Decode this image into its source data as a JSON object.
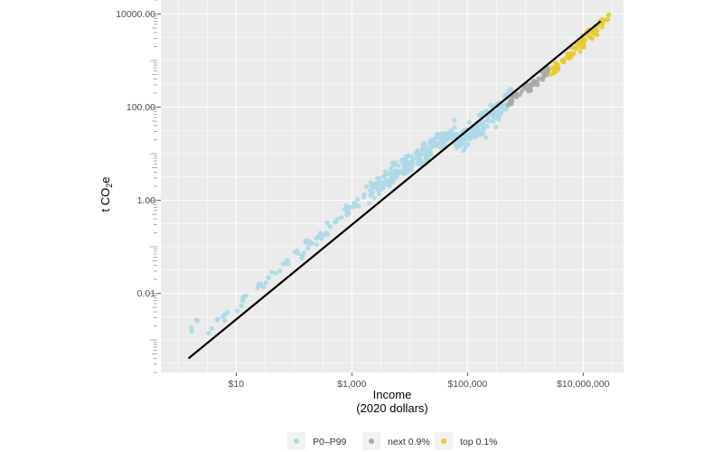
{
  "chart_data": {
    "type": "scatter",
    "xlabel_lines": [
      "Income",
      "(2020 dollars)"
    ],
    "ylabel": {
      "main": "t CO",
      "sub": "2",
      "tail": "e"
    },
    "x_scale": "log10",
    "y_scale": "log10",
    "xlim": [
      0.5,
      50000000
    ],
    "ylim": [
      0.0002,
      20000
    ],
    "x_ticks": [
      {
        "value": 10,
        "label": "$10"
      },
      {
        "value": 1000,
        "label": "$1,000"
      },
      {
        "value": 100000,
        "label": "$100,000"
      },
      {
        "value": 10000000,
        "label": "$10,000,000"
      }
    ],
    "y_ticks": [
      {
        "value": 0.01,
        "label": "0.01"
      },
      {
        "value": 1,
        "label": "1.00"
      },
      {
        "value": 100,
        "label": "100.00"
      },
      {
        "value": 10000,
        "label": "10000.00"
      }
    ],
    "grid": true,
    "legend_position": "bottom",
    "series": [
      {
        "name": "P0–P99",
        "color": "#ADD8E6",
        "clusters": [
          {
            "x": [
              0.8,
              3
            ],
            "y": [
              0.0005,
              0.005
            ],
            "n": 4,
            "slope": 1.0,
            "spread": 0.15
          },
          {
            "x": [
              3,
              100
            ],
            "y": [
              0.0015,
              0.06
            ],
            "n": 30,
            "slope": 1.0,
            "spread": 0.14
          },
          {
            "x": [
              100,
              2000
            ],
            "y": [
              0.06,
              1.5
            ],
            "n": 45,
            "slope": 1.0,
            "spread": 0.18
          },
          {
            "x": [
              2000,
              60000
            ],
            "y": [
              1.5,
              30
            ],
            "n": 180,
            "slope": 1.0,
            "spread": 0.22
          },
          {
            "x": [
              60000,
              600000
            ],
            "y": [
              15,
              150
            ],
            "n": 140,
            "slope": 1.0,
            "spread": 0.25
          }
        ]
      },
      {
        "name": "next 0.9%",
        "color": "#A9A9A9",
        "clusters": [
          {
            "x": [
              500000,
              2500000
            ],
            "y": [
              120,
              600
            ],
            "n": 45,
            "slope": 1.0,
            "spread": 0.12
          }
        ]
      },
      {
        "name": "top 0.1%",
        "color": "#E6CC33",
        "clusters": [
          {
            "x": [
              2500000,
              30000000
            ],
            "y": [
              500,
              9000
            ],
            "n": 80,
            "slope": 1.0,
            "spread": 0.13
          }
        ]
      }
    ],
    "fit_line": {
      "x": [
        1.5,
        20000000
      ],
      "y": [
        0.0004,
        7000
      ],
      "color": "#000000"
    }
  }
}
